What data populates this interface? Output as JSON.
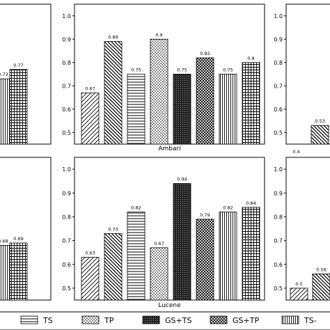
{
  "chart_data": [
    {
      "type": "bar",
      "panel": "top-left (partial)",
      "title": "",
      "categories": [
        "GS+TS",
        "GS+TP",
        "TS+TP"
      ],
      "values": [
        null,
        0.73,
        0.77
      ],
      "ylim": [
        0.45,
        1.05
      ]
    },
    {
      "type": "bar",
      "panel": "top-middle",
      "title": "Ambari",
      "categories": [
        "TS",
        "TP",
        "",
        "GS+TS",
        "",
        "GS+TP",
        "",
        "TS+TP"
      ],
      "values": [
        0.67,
        0.89,
        0.75,
        0.9,
        0.75,
        0.82,
        0.75,
        0.8
      ],
      "yticks": [
        "0.5",
        "0.6",
        "0.7",
        "0.8",
        "0.9",
        "1.0"
      ],
      "ylim": [
        0.45,
        1.05
      ]
    },
    {
      "type": "bar",
      "panel": "top-right (partial)",
      "title": "",
      "categories": [
        "TS",
        "TP"
      ],
      "values": [
        0.4,
        0.53
      ],
      "yticks": [
        "0.5",
        "0.6",
        "0.7",
        "0.8",
        "0.9",
        "1.0"
      ],
      "ylim": [
        0.45,
        1.05
      ]
    },
    {
      "type": "bar",
      "panel": "bottom-left (partial)",
      "title": "",
      "categories": [
        "GS+TS",
        "GS+TP",
        "TS+TP"
      ],
      "values": [
        null,
        0.68,
        0.69
      ],
      "ylim": [
        0.45,
        1.05
      ]
    },
    {
      "type": "bar",
      "panel": "bottom-middle",
      "title": "Lucene",
      "categories": [
        "TS",
        "TP",
        "",
        "GS+TS",
        "",
        "GS+TP",
        "",
        "TS+TP"
      ],
      "values": [
        0.63,
        0.73,
        0.82,
        0.67,
        0.94,
        0.79,
        0.82,
        0.84
      ],
      "yticks": [
        "0.5",
        "0.6",
        "0.7",
        "0.8",
        "0.9",
        "1.0"
      ],
      "ylim": [
        0.45,
        1.05
      ]
    },
    {
      "type": "bar",
      "panel": "bottom-right (partial)",
      "title": "",
      "categories": [
        "TS",
        "TP"
      ],
      "values": [
        0.5,
        0.56
      ],
      "yticks": [
        "0.5",
        "0.6",
        "0.7",
        "0.8",
        "0.9",
        "1.0"
      ],
      "ylim": [
        0.45,
        1.05
      ]
    }
  ],
  "legend": {
    "placement": "bottom",
    "items": [
      {
        "label": "TS",
        "pattern": "hlines"
      },
      {
        "label": "TP",
        "pattern": "dots"
      },
      {
        "label": "GS+TS",
        "pattern": "dense-dark"
      },
      {
        "label": "GS+TP",
        "pattern": "crosshatch"
      },
      {
        "label": "TS-",
        "pattern": "vlines"
      }
    ]
  }
}
